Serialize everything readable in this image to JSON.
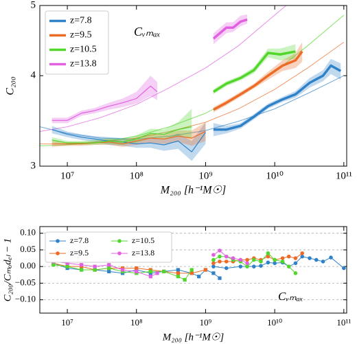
{
  "chart_data": [
    {
      "type": "line",
      "xlabel": "M₂₀₀ [h⁻¹M☉]",
      "ylabel": "C₂₀₀",
      "annotation": "Cᵥₘₐₓ",
      "xscale": "log",
      "yscale": "log",
      "xlim": [
        4000000,
        110000000000
      ],
      "ylim": [
        3,
        5
      ],
      "xticks": [
        {
          "value": 10000000,
          "label": "10⁷"
        },
        {
          "value": 100000000,
          "label": "10⁸"
        },
        {
          "value": 1000000000,
          "label": "10⁹"
        },
        {
          "value": 10000000000,
          "label": "10¹⁰"
        },
        {
          "value": 100000000000,
          "label": "10¹¹"
        }
      ],
      "yticks": [
        3,
        4,
        5
      ],
      "legend": "upper left",
      "model_x": [
        4000000,
        10000000,
        30000000,
        100000000,
        300000000,
        1000000000,
        3000000000,
        10000000000,
        30000000000,
        100000000000
      ],
      "series": [
        {
          "name": "z=7.8",
          "color": "#2f82c8",
          "linewidth": 3.5,
          "x": [
            1300000000,
            2000000000,
            3200000000,
            5000000000,
            8000000000,
            13000000000,
            20000000000,
            32000000000,
            50000000000,
            65000000000,
            90000000000
          ],
          "values": [
            3.37,
            3.37,
            3.41,
            3.51,
            3.63,
            3.71,
            3.77,
            3.91,
            4.0,
            4.13,
            4.06
          ],
          "lower": [
            3.3,
            3.33,
            3.38,
            3.48,
            3.6,
            3.68,
            3.73,
            3.85,
            3.93,
            4.02,
            3.95
          ],
          "upper": [
            3.44,
            3.41,
            3.44,
            3.54,
            3.66,
            3.74,
            3.81,
            3.97,
            4.07,
            4.22,
            4.16
          ],
          "model_values": [
            3.4,
            3.33,
            3.28,
            3.27,
            3.3,
            3.36,
            3.46,
            3.6,
            3.78,
            4.0
          ]
        },
        {
          "color": "#2f82c8",
          "linewidth": 1.2,
          "x": [
            6000000,
            10000000,
            16000000,
            25000000,
            40000000,
            63000000,
            100000000,
            160000000,
            250000000,
            400000000,
            630000000,
            1000000000
          ],
          "values": [
            3.37,
            3.32,
            3.29,
            3.27,
            3.25,
            3.24,
            3.22,
            3.23,
            3.21,
            3.25,
            3.14,
            3.34
          ],
          "lower": [
            3.33,
            3.29,
            3.26,
            3.24,
            3.21,
            3.2,
            3.18,
            3.18,
            3.15,
            3.17,
            3.05,
            3.22
          ],
          "upper": [
            3.41,
            3.35,
            3.32,
            3.3,
            3.29,
            3.28,
            3.26,
            3.28,
            3.27,
            3.33,
            3.25,
            3.45
          ]
        },
        {
          "name": "z=9.5",
          "color": "#ec6b26",
          "linewidth": 3.5,
          "x": [
            1300000000,
            2000000000,
            3200000000,
            5000000000,
            8000000000,
            13000000000,
            20000000000,
            25000000000
          ],
          "values": [
            3.59,
            3.67,
            3.77,
            3.87,
            4.0,
            4.13,
            4.2,
            4.32
          ],
          "lower": [
            3.56,
            3.64,
            3.74,
            3.84,
            3.95,
            4.06,
            4.1,
            4.18
          ],
          "upper": [
            3.62,
            3.7,
            3.8,
            3.9,
            4.05,
            4.2,
            4.3,
            4.45
          ],
          "model_values": [
            3.22,
            3.22,
            3.24,
            3.28,
            3.35,
            3.45,
            3.6,
            3.83,
            4.1,
            4.45
          ]
        },
        {
          "color": "#ec6b26",
          "linewidth": 1.2,
          "x": [
            6000000,
            10000000,
            16000000,
            25000000,
            40000000,
            63000000,
            100000000,
            160000000,
            250000000,
            400000000,
            630000000,
            1000000000
          ],
          "values": [
            3.22,
            3.22,
            3.22,
            3.23,
            3.24,
            3.22,
            3.25,
            3.28,
            3.27,
            3.3,
            3.28,
            3.35
          ],
          "lower": [
            3.19,
            3.2,
            3.2,
            3.21,
            3.21,
            3.19,
            3.21,
            3.23,
            3.22,
            3.24,
            3.2,
            3.25
          ],
          "upper": [
            3.25,
            3.24,
            3.24,
            3.25,
            3.27,
            3.25,
            3.29,
            3.33,
            3.32,
            3.36,
            3.36,
            3.45
          ]
        },
        {
          "name": "z=10.5",
          "color": "#52d62c",
          "linewidth": 3.5,
          "x": [
            1300000000,
            2000000000,
            3200000000,
            5000000000,
            8000000000,
            12000000000,
            20000000000
          ],
          "values": [
            3.8,
            3.9,
            3.97,
            4.07,
            4.3,
            4.28,
            4.32
          ],
          "lower": [
            3.77,
            3.87,
            3.94,
            4.03,
            4.24,
            4.2,
            4.22
          ],
          "upper": [
            3.83,
            3.93,
            4.0,
            4.11,
            4.36,
            4.36,
            4.42
          ],
          "model_values": [
            3.2,
            3.21,
            3.24,
            3.3,
            3.4,
            3.55,
            3.75,
            4.05,
            4.4,
            4.85
          ]
        },
        {
          "color": "#52d62c",
          "linewidth": 1.2,
          "x": [
            6000000,
            10000000,
            16000000,
            25000000,
            40000000,
            63000000,
            100000000,
            160000000,
            250000000,
            400000000,
            630000000
          ],
          "values": [
            3.26,
            3.23,
            3.23,
            3.23,
            3.25,
            3.24,
            3.27,
            3.33,
            3.32,
            3.37,
            3.4
          ],
          "lower": [
            3.23,
            3.21,
            3.21,
            3.21,
            3.22,
            3.21,
            3.23,
            3.28,
            3.27,
            3.3,
            3.28
          ],
          "upper": [
            3.29,
            3.25,
            3.25,
            3.26,
            3.28,
            3.27,
            3.31,
            3.38,
            3.37,
            3.45,
            3.6
          ]
        },
        {
          "name": "z=13.8",
          "color": "#e060e0",
          "linewidth": 3.5,
          "x": [
            1300000000,
            2000000000,
            2500000000,
            3200000000,
            4000000000
          ],
          "values": [
            4.5,
            4.66,
            4.66,
            4.75,
            4.78
          ],
          "lower": [
            4.42,
            4.58,
            4.6,
            4.68,
            4.72
          ],
          "upper": [
            4.58,
            4.74,
            4.74,
            4.84,
            4.86
          ],
          "model_values": [
            3.35,
            3.4,
            3.5,
            3.65,
            3.85,
            4.1,
            4.4,
            4.85,
            5.3,
            null
          ]
        },
        {
          "color": "#e060e0",
          "linewidth": 1.2,
          "x": [
            6000000,
            10000000,
            16000000,
            25000000,
            40000000,
            63000000,
            100000000,
            160000000,
            200000000
          ],
          "values": [
            3.47,
            3.47,
            3.55,
            3.58,
            3.63,
            3.67,
            3.72,
            3.87,
            3.8
          ],
          "lower": [
            3.44,
            3.44,
            3.52,
            3.55,
            3.59,
            3.62,
            3.66,
            3.75,
            3.7
          ],
          "upper": [
            3.5,
            3.5,
            3.58,
            3.61,
            3.67,
            3.72,
            3.8,
            4.0,
            3.92
          ]
        }
      ]
    },
    {
      "type": "line",
      "xlabel": "M₂₀₀ [h⁻¹M☉]",
      "ylabel": "C₂₀₀/Cₘₒdₑₗ − 1",
      "annotation": "Cᵥₘₐₓ",
      "xscale": "log",
      "yscale": "linear",
      "xlim": [
        4000000,
        110000000000
      ],
      "ylim": [
        -0.14,
        0.12
      ],
      "xticks": [
        {
          "value": 10000000,
          "label": "10⁷"
        },
        {
          "value": 100000000,
          "label": "10⁸"
        },
        {
          "value": 1000000000,
          "label": "10⁹"
        },
        {
          "value": 10000000000,
          "label": "10¹⁰"
        },
        {
          "value": 100000000000,
          "label": "10¹¹"
        }
      ],
      "yticks": [
        {
          "value": -0.1,
          "label": "−0.10"
        },
        {
          "value": -0.05,
          "label": "−0.05"
        },
        {
          "value": 0,
          "label": "0.00"
        },
        {
          "value": 0.05,
          "label": "0.05"
        },
        {
          "value": 0.1,
          "label": "0.10"
        }
      ],
      "grid": true,
      "legend": "upper left",
      "legend_ncol": 2,
      "series": [
        {
          "name": "z=7.8",
          "color": "#2f82c8",
          "marker": "circle",
          "x": [
            1300000000,
            2000000000,
            3200000000,
            5000000000,
            6300000000,
            8000000000,
            10000000000,
            13000000000,
            16000000000,
            20000000000,
            25000000000,
            32000000000,
            40000000000,
            50000000000,
            65000000000,
            100000000000
          ],
          "values": [
            0.0,
            -0.005,
            0.0,
            0.0,
            0.002,
            0.012,
            0.01,
            0.012,
            0.0,
            0.01,
            0.03,
            0.025,
            0.02,
            0.015,
            0.027,
            -0.005
          ]
        },
        {
          "color": "#2f82c8",
          "marker": "square",
          "x": [
            6300000,
            10000000,
            16000000,
            25000000,
            40000000,
            63000000,
            100000000,
            160000000,
            250000000,
            400000000,
            630000000,
            800000000,
            1000000000,
            1300000000,
            1600000000
          ],
          "values": [
            0.01,
            -0.005,
            -0.01,
            -0.01,
            -0.015,
            -0.02,
            -0.01,
            -0.02,
            -0.015,
            -0.01,
            -0.02,
            -0.03,
            -0.01,
            -0.02,
            -0.035
          ]
        },
        {
          "name": "z=9.5",
          "color": "#ec6b26",
          "marker": "circle",
          "x": [
            1300000000,
            1600000000,
            2000000000,
            2500000000,
            3200000000,
            4000000000,
            5000000000,
            6300000000,
            8000000000,
            10000000000,
            13000000000,
            16000000000,
            20000000000,
            25000000000
          ],
          "values": [
            0.01,
            0.015,
            0.015,
            0.015,
            0.02,
            0.02,
            0.025,
            0.02,
            0.03,
            0.02,
            0.025,
            0.03,
            0.025,
            0.04
          ]
        },
        {
          "color": "#ec6b26",
          "marker": "square",
          "x": [
            6300000,
            10000000,
            16000000,
            25000000,
            40000000,
            63000000,
            100000000,
            160000000,
            250000000,
            400000000,
            630000000,
            1000000000
          ],
          "values": [
            0.01,
            0.0,
            0.0,
            -0.01,
            -0.005,
            -0.005,
            -0.005,
            -0.01,
            -0.015,
            -0.02,
            -0.02,
            -0.01
          ]
        },
        {
          "name": "z=10.5",
          "color": "#52d62c",
          "marker": "circle",
          "x": [
            1300000000,
            1600000000,
            2000000000,
            2500000000,
            3200000000,
            4000000000,
            5000000000,
            6300000000,
            8000000000,
            10000000000,
            13000000000,
            16000000000,
            20000000000
          ],
          "values": [
            0.02,
            0.03,
            0.03,
            0.02,
            0.015,
            0.0,
            0.02,
            0.015,
            0.04,
            0.02,
            0.015,
            0.0,
            -0.02
          ]
        },
        {
          "color": "#52d62c",
          "marker": "square",
          "x": [
            6300000,
            10000000,
            16000000,
            25000000,
            40000000,
            63000000,
            100000000,
            160000000,
            250000000,
            400000000,
            500000000,
            630000000
          ],
          "values": [
            0.005,
            0.0,
            -0.01,
            -0.01,
            -0.005,
            -0.015,
            -0.02,
            -0.015,
            -0.015,
            -0.03,
            -0.04,
            -0.01
          ]
        },
        {
          "name": "z=13.8",
          "color": "#e060e0",
          "marker": "circle",
          "x": [
            1300000000,
            1600000000,
            2000000000,
            2500000000,
            3200000000,
            4000000000
          ],
          "values": [
            0.035,
            0.048,
            0.03,
            0.025,
            0.02,
            0.01
          ]
        },
        {
          "color": "#e060e0",
          "marker": "square",
          "x": [
            6300000,
            10000000,
            16000000,
            25000000,
            40000000,
            63000000,
            100000000,
            160000000,
            200000000
          ],
          "values": [
            0.015,
            0.01,
            0.005,
            0.0,
            0.005,
            -0.01,
            -0.015,
            -0.03,
            -0.02
          ]
        }
      ]
    }
  ]
}
